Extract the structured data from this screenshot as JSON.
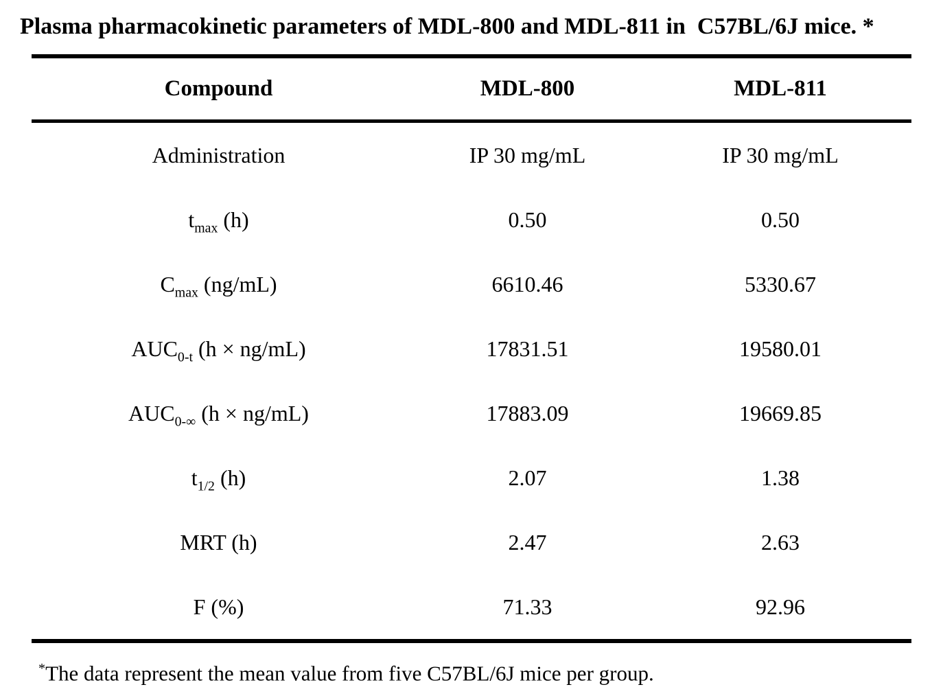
{
  "title": "Plasma pharmacokinetic parameters of MDL-800 and MDL-811 in  C57BL/6J mice. *",
  "table": {
    "columns": [
      "Compound",
      "MDL-800",
      "MDL-811"
    ],
    "rows": [
      {
        "label": [
          {
            "t": "Administration"
          }
        ],
        "values": [
          "IP 30 mg/mL",
          "IP 30 mg/mL"
        ]
      },
      {
        "label": [
          {
            "t": "t"
          },
          {
            "s": "max"
          },
          {
            "t": " (h)"
          }
        ],
        "values": [
          "0.50",
          "0.50"
        ]
      },
      {
        "label": [
          {
            "t": "C"
          },
          {
            "s": "max"
          },
          {
            "t": " (ng/mL)"
          }
        ],
        "values": [
          "6610.46",
          "5330.67"
        ]
      },
      {
        "label": [
          {
            "t": "AUC"
          },
          {
            "s": "0-t"
          },
          {
            "t": " (h × ng/mL)"
          }
        ],
        "values": [
          "17831.51",
          "19580.01"
        ]
      },
      {
        "label": [
          {
            "t": "AUC"
          },
          {
            "s": "0-∞"
          },
          {
            "t": " (h × ng/mL)"
          }
        ],
        "values": [
          "17883.09",
          "19669.85"
        ]
      },
      {
        "label": [
          {
            "t": "t"
          },
          {
            "s": "1/2"
          },
          {
            "t": " (h)"
          }
        ],
        "values": [
          "2.07",
          "1.38"
        ]
      },
      {
        "label": [
          {
            "t": "MRT (h)"
          }
        ],
        "values": [
          "2.47",
          "2.63"
        ]
      },
      {
        "label": [
          {
            "t": "F (%)"
          }
        ],
        "values": [
          "71.33",
          "92.96"
        ]
      }
    ]
  },
  "footnote": {
    "marker": "*",
    "text": "The data represent the mean value from five C57BL/6J mice per group."
  },
  "colors": {
    "text": "#000000",
    "background": "#ffffff",
    "rule": "#000000"
  }
}
